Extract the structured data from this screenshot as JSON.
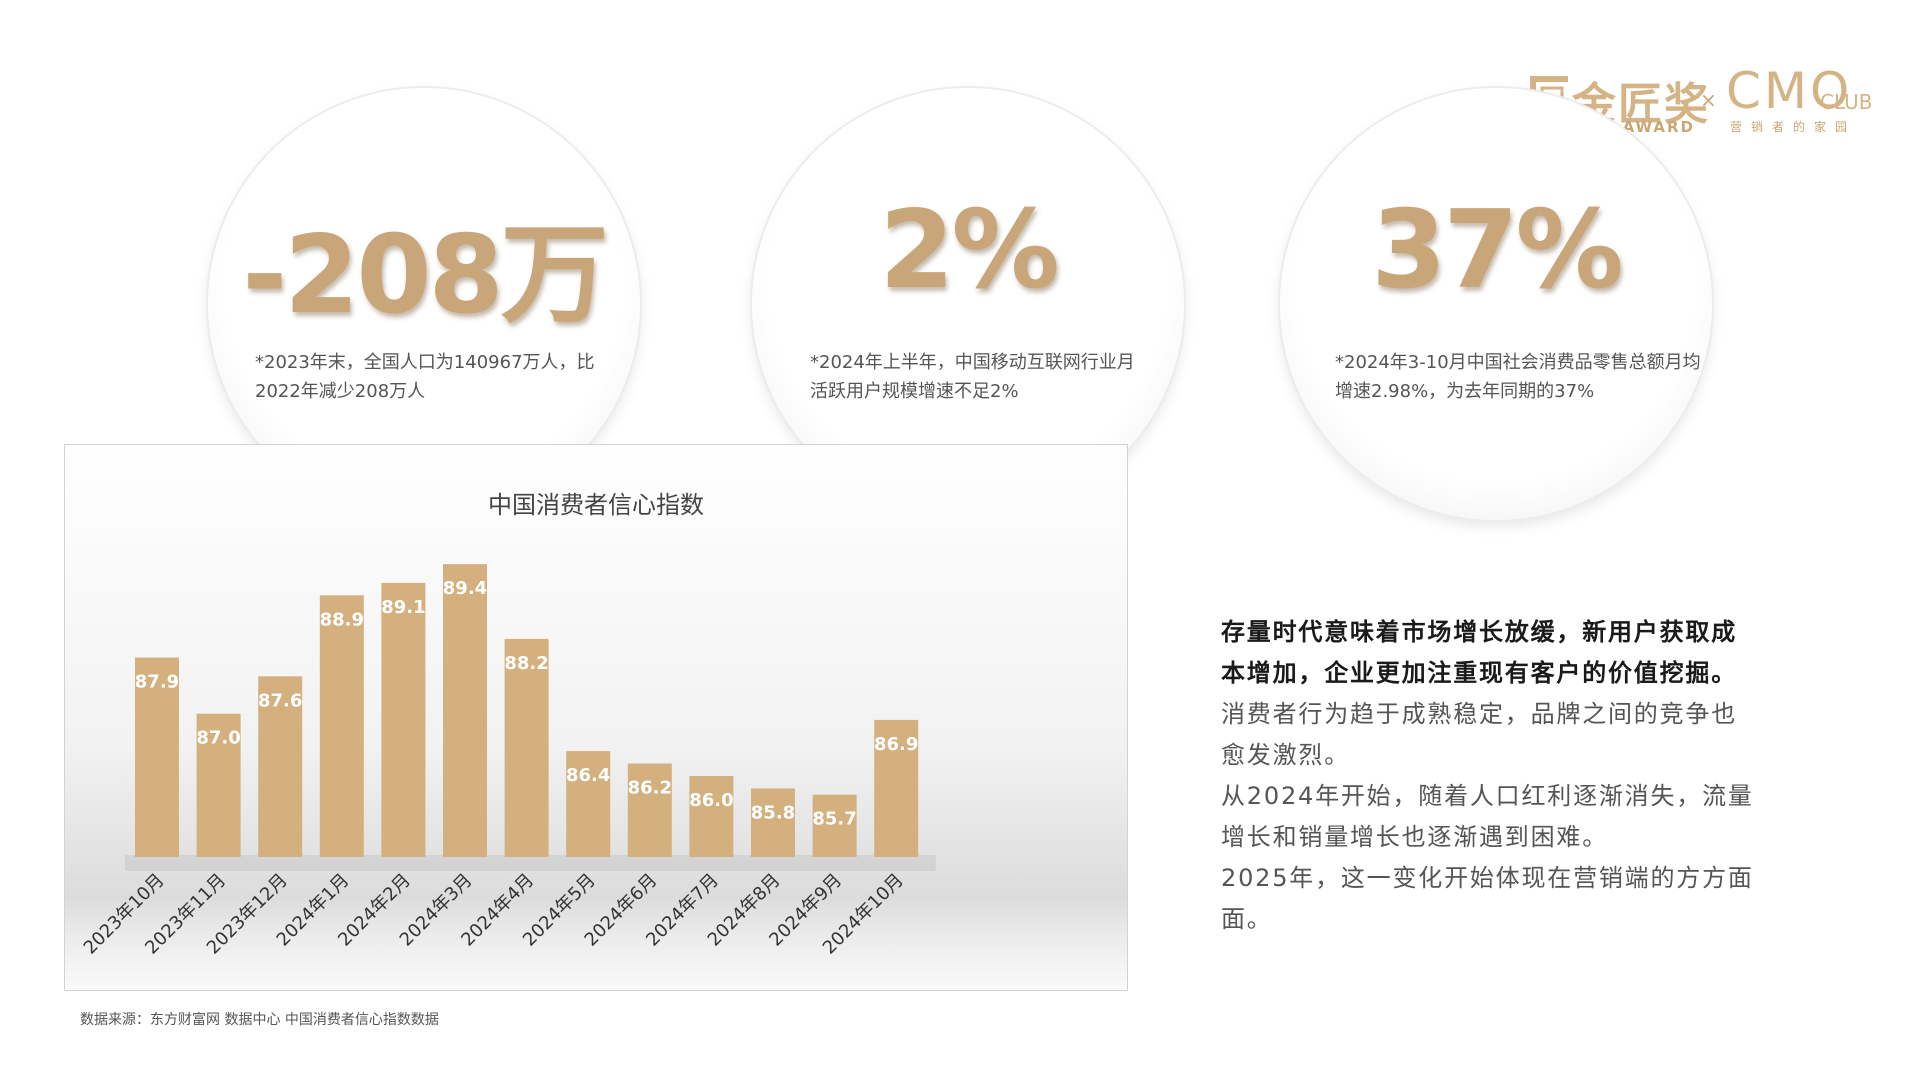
{
  "logo": {
    "brand_cn": "金匠奖",
    "brand_en": "JINJIANG AWARD",
    "separator": "×",
    "partner": "CMO",
    "partner_suffix": "CLUB",
    "partner_cn": "营销者的家园"
  },
  "stats": [
    {
      "value": "-208万",
      "note": "*2023年末，全国人口为140967万人，比2022年减少208万人"
    },
    {
      "value": "2%",
      "note": "*2024年上半年，中国移动互联网行业月活跃用户规模增速不足2%"
    },
    {
      "value": "37%",
      "note": "*2024年3-10月中国社会消费品零售总额月均增速2.98%，为去年同期的37%"
    }
  ],
  "chart_data": {
    "type": "bar",
    "title": "中国消费者信心指数",
    "categories": [
      "2023年10月",
      "2023年11月",
      "2023年12月",
      "2024年1月",
      "2024年2月",
      "2024年3月",
      "2024年4月",
      "2024年5月",
      "2024年6月",
      "2024年7月",
      "2024年8月",
      "2024年9月",
      "2024年10月"
    ],
    "values": [
      87.9,
      87.0,
      87.6,
      88.9,
      89.1,
      89.4,
      88.2,
      86.4,
      86.2,
      86.0,
      85.8,
      85.7,
      86.9
    ],
    "ylim": [
      84.7,
      89.9
    ],
    "grid": false,
    "legend": "none",
    "bar_color": "#d4b07e",
    "label_color": "#ffffff"
  },
  "source": "数据来源：东方财富网 数据中心 中国消费者信心指数数据",
  "body": {
    "bold": "存量时代意味着市场增长放缓，新用户获取成本增加，企业更加注重现有客户的价值挖掘。",
    "line1": "消费者行为趋于成熟稳定，品牌之间的竞争也愈发激烈。",
    "line2": "从2024年开始，随着人口红利逐渐消失，流量增长和销量增长也逐渐遇到困难。",
    "line3": "2025年，这一变化开始体现在营销端的方方面面。"
  },
  "colors": {
    "accent": "#c9a67a",
    "bar": "#d4b07e"
  }
}
